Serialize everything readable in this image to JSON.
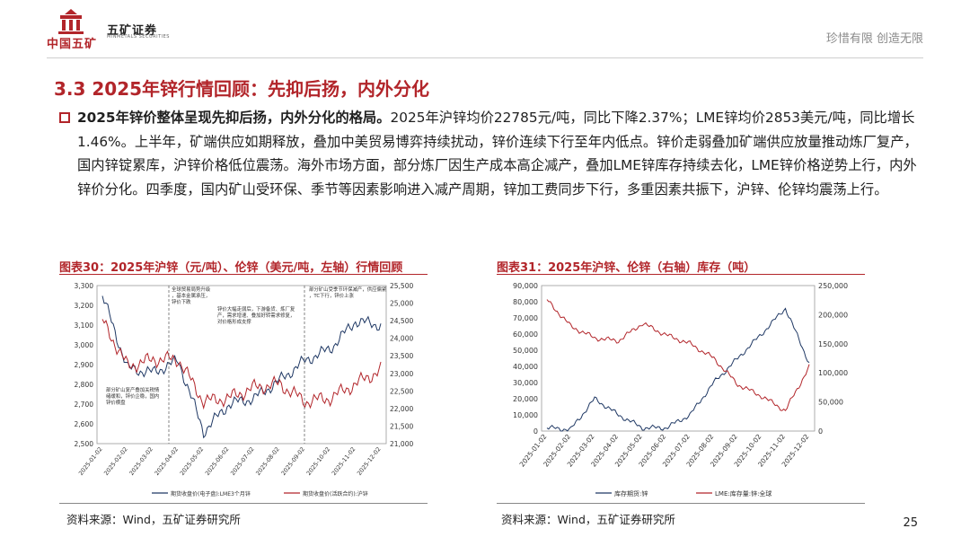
{
  "header": {
    "company_cn": "中国五矿",
    "brand_cn": "五矿证券",
    "brand_en": "MINMETALS SECURITIES",
    "slogan": "珍惜有限  创造无限"
  },
  "section_title": "3.3 2025年锌行情回顾：先抑后扬，内外分化",
  "paragraph": {
    "lead": "2025年锌价整体呈现先抑后扬，内外分化的格局。",
    "body": "2025年沪锌均价22785元/吨，同比下降2.37%；LME锌均价2853美元/吨，同比增长1.46%。上半年，矿端供应如期释放，叠加中美贸易博弈持续扰动，锌价连续下行至年内低点。锌价走弱叠加矿端供应放量推动炼厂复产，国内锌锭累库，沪锌价格低位震荡。海外市场方面，部分炼厂因生产成本高企减产，叠加LME锌库存持续去化，LME锌价格逆势上行，内外锌价分化。四季度，国内矿山受环保、季节等因素影响进入减产周期，锌加工费同步下行，多重因素共振下，沪锌、伦锌均震荡上行。"
  },
  "chart1_title": "图表30：2025年沪锌（元/吨）、伦锌（美元/吨，左轴）行情回顾",
  "chart2_title": "图表31：2025年沪锌、伦锌（右轴）库存（吨）",
  "source1": "资料来源：Wind，五矿证券研究所",
  "source2": "资料来源：Wind，五矿证券研究所",
  "page_number": "25",
  "chart_data": [
    {
      "type": "line",
      "title": "图表30：2025年沪锌（元/吨）、伦锌（美元/吨，左轴）行情回顾",
      "x": [
        "2025-01-02",
        "2025-02-02",
        "2025-03-02",
        "2025-04-02",
        "2025-05-02",
        "2025-06-02",
        "2025-07-02",
        "2025-08-02",
        "2025-09-02",
        "2025-10-02",
        "2025-11-02",
        "2025-12-02"
      ],
      "left_axis": {
        "ylim": [
          2500,
          3300
        ],
        "ticks": [
          "2,500",
          "2,600",
          "2,700",
          "2,800",
          "2,900",
          "3,000",
          "3,100",
          "3,200",
          "3,300"
        ]
      },
      "right_axis": {
        "ylim": [
          21000,
          25500
        ],
        "ticks": [
          "21,000",
          "21,500",
          "22,000",
          "22,500",
          "23,000",
          "23,500",
          "24,000",
          "24,500",
          "25,000",
          "25,500"
        ]
      },
      "series": [
        {
          "name": "期货收盘价(电子盘):LME3个月锌",
          "color": "#1f3864",
          "axis": "left",
          "values": [
            3250,
            2880,
            2860,
            2920,
            2560,
            2700,
            2730,
            2820,
            2920,
            2980,
            3120,
            3100
          ]
        },
        {
          "name": "期货收盘价(活跃合约):沪锌",
          "color": "#b2252a",
          "axis": "right",
          "values": [
            24500,
            23200,
            23400,
            23400,
            22200,
            22300,
            22600,
            22700,
            22200,
            22300,
            22700,
            23100
          ]
        }
      ],
      "annotations": [
        "全球贸易局势升级，基本金属承压，锌价下跌",
        "锌价大幅走弱后，下游备货、炼厂复产，需求增速、叠加好转需求修复，对价格形成支撑",
        "部分矿山复产叠加关税情绪缓和，锌价企稳，国内锌价横盘",
        "部分矿山受季节环保减产，供应偏紧，TC下行，锌价上涨"
      ]
    },
    {
      "type": "line",
      "title": "图表31：2025年沪锌、伦锌（右轴）库存（吨）",
      "x": [
        "2025-01-02",
        "2025-02-02",
        "2025-03-02",
        "2025-04-02",
        "2025-05-02",
        "2025-06-02",
        "2025-07-02",
        "2025-08-02",
        "2025-09-02",
        "2025-10-02",
        "2025-11-02",
        "2025-12-02"
      ],
      "left_axis": {
        "ylim": [
          0,
          90000
        ],
        "ticks": [
          "0",
          "10,000",
          "20,000",
          "30,000",
          "40,000",
          "50,000",
          "60,000",
          "70,000",
          "80,000",
          "90,000"
        ]
      },
      "right_axis": {
        "ylim": [
          0,
          250000
        ],
        "ticks": [
          "0",
          "50,000",
          "100,000",
          "150,000",
          "200,000",
          "250,000"
        ]
      },
      "series": [
        {
          "name": "库存期货:锌",
          "color": "#1f3864",
          "axis": "left",
          "values": [
            2000,
            1000,
            20000,
            10000,
            2000,
            2000,
            10000,
            30000,
            45000,
            60000,
            76000,
            42000
          ]
        },
        {
          "name": "LME:库存量:锌:全球",
          "color": "#b2252a",
          "axis": "right",
          "values": [
            225000,
            180000,
            160000,
            155000,
            185000,
            165000,
            150000,
            125000,
            80000,
            60000,
            35000,
            110000
          ]
        }
      ]
    }
  ]
}
